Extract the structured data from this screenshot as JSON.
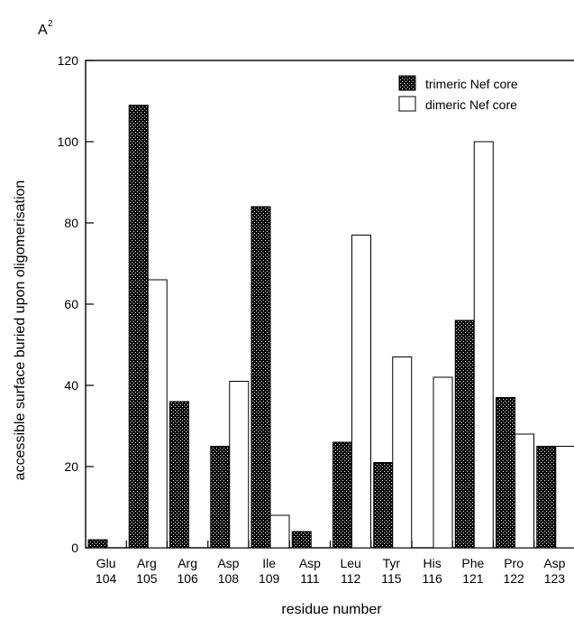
{
  "chart_data": {
    "type": "bar",
    "unit_label": "A",
    "unit_superscript": "2",
    "ylabel": "accessible surface buried upon oligomerisation",
    "xlabel": "residue number",
    "ylim": [
      0,
      120
    ],
    "yticks": [
      0,
      20,
      40,
      60,
      80,
      100,
      120
    ],
    "categories": [
      {
        "residue": "Glu",
        "number": "104"
      },
      {
        "residue": "Arg",
        "number": "105"
      },
      {
        "residue": "Arg",
        "number": "106"
      },
      {
        "residue": "Asp",
        "number": "108"
      },
      {
        "residue": "Ile",
        "number": "109"
      },
      {
        "residue": "Asp",
        "number": "111"
      },
      {
        "residue": "Leu",
        "number": "112"
      },
      {
        "residue": "Tyr",
        "number": "115"
      },
      {
        "residue": "His",
        "number": "116"
      },
      {
        "residue": "Phe",
        "number": "121"
      },
      {
        "residue": "Pro",
        "number": "122"
      },
      {
        "residue": "Asp",
        "number": "123"
      }
    ],
    "series": [
      {
        "name": "trimeric Nef core",
        "fill": "stippled-dark",
        "values": [
          2,
          109,
          36,
          25,
          84,
          4,
          26,
          21,
          0,
          56,
          37,
          25
        ]
      },
      {
        "name": "dimeric Nef core",
        "fill": "white",
        "values": [
          0,
          66,
          0,
          41,
          8,
          0,
          77,
          47,
          42,
          100,
          28,
          25
        ]
      }
    ],
    "legend_position": "top-right",
    "grid": false
  }
}
